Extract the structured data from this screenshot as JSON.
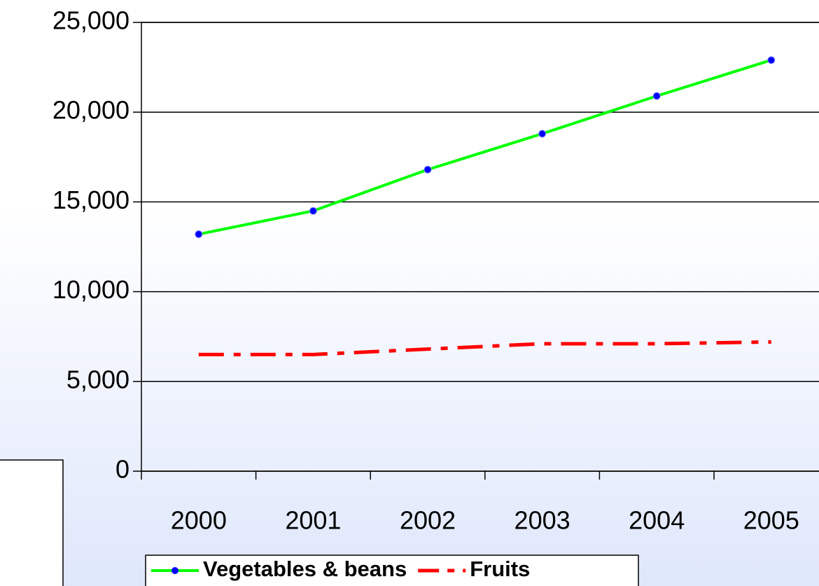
{
  "chart_data": {
    "type": "line",
    "categories": [
      "2000",
      "2001",
      "2002",
      "2003",
      "2004",
      "2005"
    ],
    "series": [
      {
        "name": "Vegetables & beans",
        "color": "#00ff00",
        "marker_color": "#0000ff",
        "values": [
          13200,
          14500,
          16800,
          18800,
          20900,
          22900
        ]
      },
      {
        "name": "Fruits",
        "color": "#ff0000",
        "values": [
          6500,
          6500,
          6800,
          7100,
          7100,
          7200
        ]
      }
    ],
    "ylim": [
      0,
      25000
    ],
    "yticks": [
      {
        "value": 0,
        "label": "0"
      },
      {
        "value": 5000,
        "label": "5,000"
      },
      {
        "value": 10000,
        "label": "10,000"
      },
      {
        "value": 15000,
        "label": "15,000"
      },
      {
        "value": 20000,
        "label": "20,000"
      },
      {
        "value": 25000,
        "label": "25,000"
      }
    ],
    "grid": true,
    "legend": "bottom"
  }
}
